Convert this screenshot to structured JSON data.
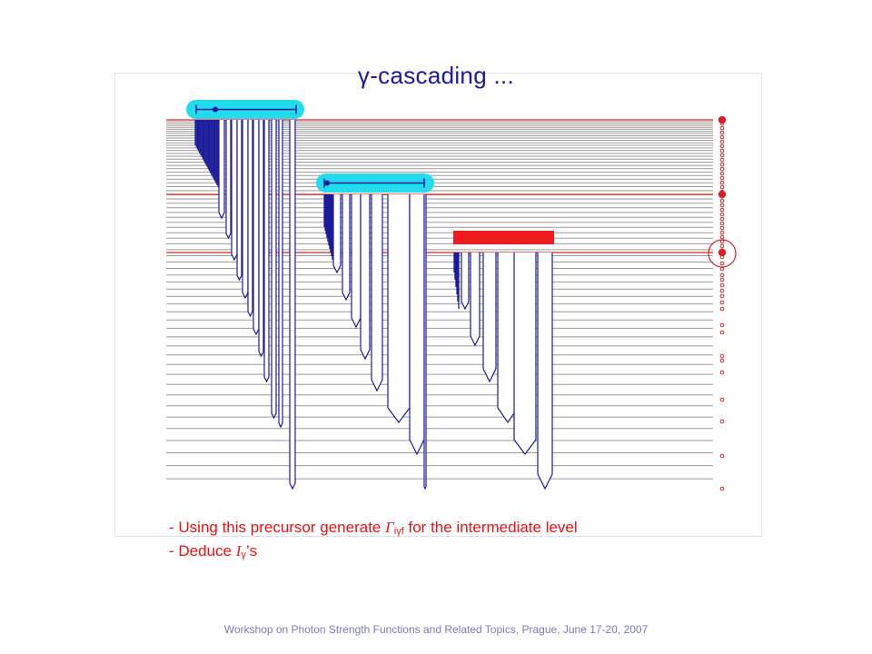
{
  "title": "γ-cascading ...",
  "bullets": {
    "line1_pre": "- Using this precursor generate ",
    "line1_sym": "Γ",
    "line1_sub": "iγf",
    "line1_post": " for the intermediate level",
    "line2_pre": "- Deduce ",
    "line2_sym": "I",
    "line2_sub": "γ",
    "line2_post": "’s"
  },
  "footer": "Workshop on Photon Strength Functions and Related Topics, Prague, June 17-20, 2007",
  "colors": {
    "level_line": "#9a9a9a",
    "selected_level": "#ee1c1c",
    "transition": "#1a1a9a",
    "highlight_box": "#22dcee",
    "marker": "#e02020"
  }
}
